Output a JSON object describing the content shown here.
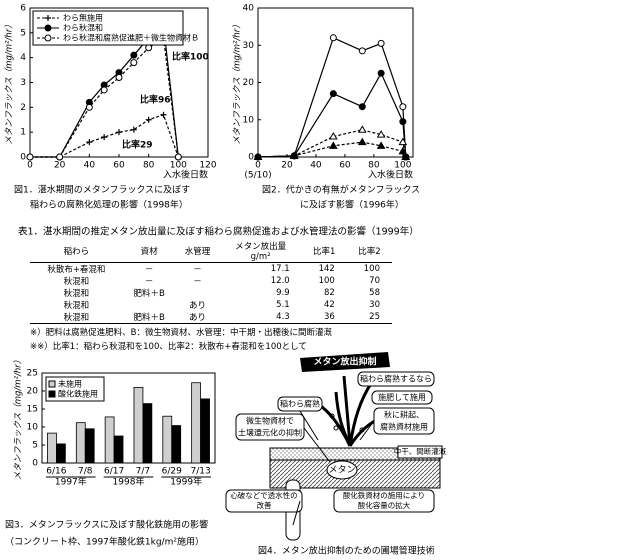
{
  "chart_data": [
    {
      "type": "line",
      "caption": [
        "図1．湛水期間のメタンフラックスに及ぼす",
        "稲わらの腐熟化処理の影響（1998年）"
      ],
      "xlabel": "入水後日数",
      "ylabel": "メタンフラックス（mg/m²/hr）",
      "x": [
        0,
        20,
        40,
        50,
        60,
        70,
        80,
        90,
        100
      ],
      "series": [
        {
          "name": "わら無施用",
          "color": "#000000",
          "dash": true,
          "marker": "plus",
          "values": [
            0,
            0,
            0.6,
            0.8,
            1.0,
            1.1,
            1.5,
            1.7,
            0
          ]
        },
        {
          "name": "わら秋混和",
          "color": "#000000",
          "dash": false,
          "marker": "circle-filled",
          "values": [
            0,
            0,
            2.2,
            2.9,
            3.4,
            4.1,
            4.8,
            5.3,
            0
          ]
        },
        {
          "name": "わら秋混和腐熟促進肥＋微生物資材Ｂ",
          "color": "#000000",
          "dash": true,
          "marker": "circle-open",
          "values": [
            0,
            0,
            2.0,
            2.7,
            3.2,
            3.8,
            4.4,
            4.8,
            0
          ]
        }
      ],
      "annotations": [
        "比率100",
        "比率96",
        "比率29"
      ],
      "xlim": [
        0,
        120
      ],
      "xticks": [
        0,
        20,
        40,
        60,
        80,
        100,
        120
      ],
      "ylim": [
        0,
        6
      ],
      "yticks": [
        0,
        1,
        2,
        3,
        4,
        5,
        6
      ],
      "legend": "upper left"
    },
    {
      "type": "line",
      "caption": [
        "図2．代かきの有無がメタンフラックス",
        "に及ぼす影響（1996年）"
      ],
      "xlabel": "入水後日数",
      "ylabel": "メタンフラックス（mg/m²/hr）",
      "x_note": "(5/10)",
      "x": [
        0,
        25,
        52,
        72,
        85,
        100,
        102
      ],
      "series": [
        {
          "color": "#000000",
          "dash": false,
          "marker": "circle-open",
          "values": [
            0,
            0.3,
            32,
            28.5,
            30.5,
            13.5,
            0
          ]
        },
        {
          "color": "#000000",
          "dash": false,
          "marker": "circle-filled",
          "values": [
            0,
            0.3,
            17,
            13.5,
            22.5,
            9.5,
            0
          ]
        },
        {
          "color": "#000000",
          "dash": true,
          "marker": "triangle-open",
          "values": [
            0,
            0.3,
            5.5,
            7.3,
            6,
            4,
            0
          ]
        },
        {
          "color": "#000000",
          "dash": true,
          "marker": "triangle-filled",
          "values": [
            0,
            0.3,
            3,
            4,
            3,
            1.5,
            0
          ]
        }
      ],
      "xlim": [
        0,
        107
      ],
      "xticks": [
        0,
        20,
        40,
        60,
        80,
        100
      ],
      "ylim": [
        0,
        40
      ],
      "yticks": [
        0,
        10,
        20,
        30,
        40
      ]
    },
    {
      "type": "bar",
      "caption": [
        "図3．メタンフラックスに及ぼす酸化鉄施用の影響",
        "（コンクリート枠、1997年酸化鉄1kg/m²施用）"
      ],
      "ylabel": "メタンフラックス（mg/m²/hr）",
      "categories": [
        "6/16",
        "7/8",
        "6/17",
        "7/7",
        "6/29",
        "7/13"
      ],
      "years": [
        "1997年",
        "1998年",
        "1999年"
      ],
      "series": [
        {
          "name": "未施用",
          "color": "#cfcfcf",
          "values": [
            8.3,
            11.2,
            12.8,
            21,
            13,
            22.3
          ]
        },
        {
          "name": "酸化鉄施用",
          "color": "#000000",
          "values": [
            5.3,
            9.5,
            7.5,
            16.5,
            10.4,
            17.8
          ]
        }
      ],
      "ylim": [
        0,
        25
      ],
      "yticks": [
        0,
        5,
        10,
        15,
        20,
        25
      ],
      "legend": "upper left"
    }
  ],
  "table": {
    "title": "表1．湛水期間の推定メタン放出量に及ぼす稲わら腐熟促進および水管理法の影響（1999年）",
    "header": [
      "稲わら",
      "資材",
      "水管理",
      "メタン放出量",
      "比率1",
      "比率2"
    ],
    "header_unit": "g/m²",
    "rows": [
      [
        "秋散布+春混和",
        "－",
        "－",
        "17.1",
        "142",
        "100"
      ],
      [
        "秋混和",
        "－",
        "－",
        "12.0",
        "100",
        "70"
      ],
      [
        "秋混和",
        "肥料＋B",
        null,
        "9.9",
        "82",
        "58"
      ],
      [
        "秋混和",
        null,
        "あり",
        "5.1",
        "42",
        "30"
      ],
      [
        "秋混和",
        "肥料＋B",
        "あり",
        "4.3",
        "36",
        "25"
      ]
    ],
    "notes": [
      "※）肥料は腐熟促進肥料、B：微生物資材、水管理：中干期・出穂後に間断灌漑",
      "※※）比率1：稲わら秋混和を100、比率2：秋散布+春混和を100として"
    ]
  },
  "diagram": {
    "caption": "図4．メタン放出抑制のための圃場管理技術",
    "title": "メタン放出抑制",
    "labels": {
      "straw_if": "稲わら腐熟するなら",
      "fert": "施肥して施用",
      "straw": "稲わら腐熟",
      "microbe": [
        "微生物資材で",
        "土壌還元化の抑制"
      ],
      "autumn": [
        "秋に耕起、",
        "腐熟資材施用"
      ],
      "water": "中干、間断灌漑",
      "methane": "メタン",
      "iron": [
        "酸化鉄資材の施用により",
        "酸化容量の拡大"
      ],
      "drain": [
        "心破などで透水性の",
        "改善"
      ]
    }
  }
}
